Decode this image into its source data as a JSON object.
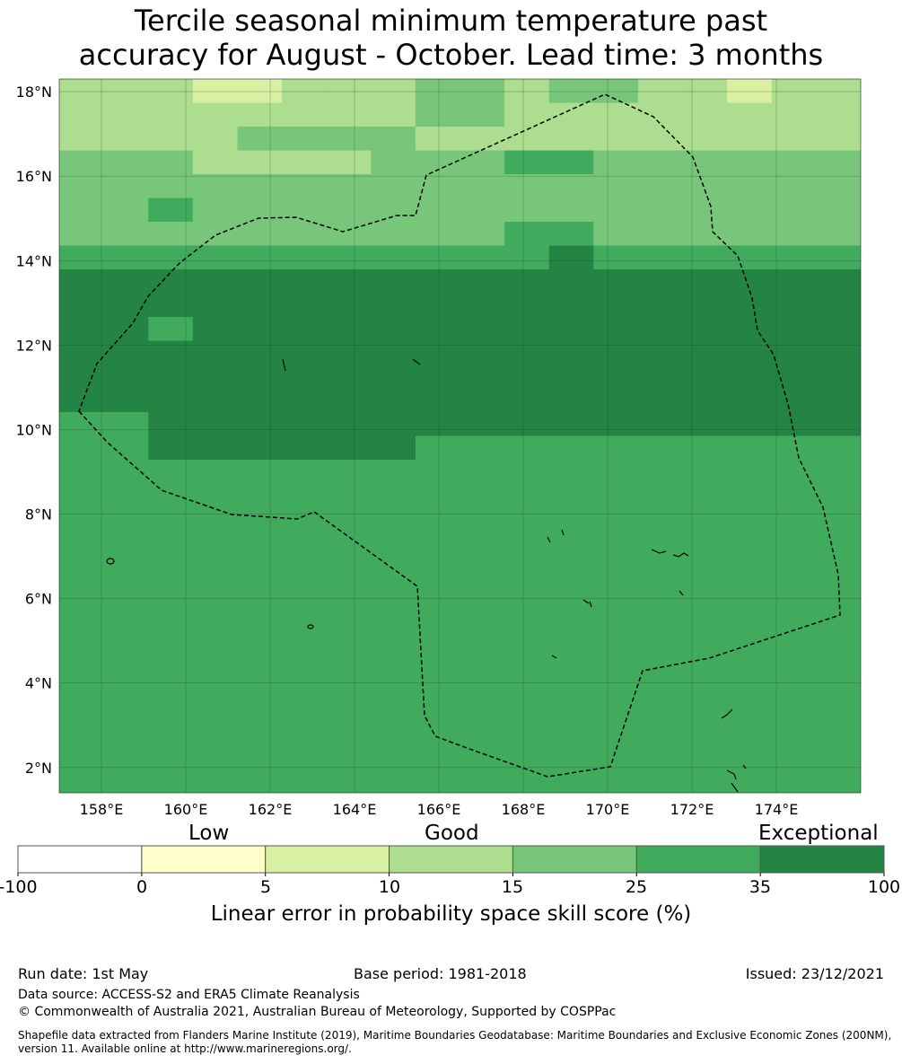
{
  "title": {
    "line1": "Tercile seasonal minimum temperature past",
    "line2": "accuracy for August - October. Lead time: 3 months"
  },
  "map": {
    "lon_range": [
      157,
      176
    ],
    "lat_range": [
      1.4,
      18.3
    ],
    "lat_ticks": [
      "18°N",
      "16°N",
      "14°N",
      "12°N",
      "10°N",
      "8°N",
      "6°N",
      "4°N",
      "2°N"
    ],
    "lon_ticks": [
      "158°E",
      "160°E",
      "162°E",
      "164°E",
      "166°E",
      "168°E",
      "170°E",
      "172°E",
      "174°E"
    ],
    "eez_boundary": "dashed black line",
    "skill_grid": [
      "333223334434433233",
      "333333334433333333",
      "333344443333333333",
      "444333344455444444",
      "444444444444444444",
      "445444444444444444",
      "444444444455444444",
      "555555555556555555",
      "666666666666666666",
      "666666666666666666",
      "665666666666666666",
      "666666666666666666",
      "666666666666666666",
      "666666666666666666",
      "556666666666666666",
      "556666665555555555",
      "555555555555555555",
      "555555555555555555",
      "555555555555555555",
      "555555555555555555",
      "555555555555555555",
      "555555555555555555",
      "555555555555555555",
      "555555555555555555",
      "555555555555555555",
      "555555555555555555",
      "555555555555555555",
      "555555555555555555",
      "555555555555555555",
      "555555555555555555"
    ]
  },
  "colorbar": {
    "category_labels": [
      "Low",
      "Good",
      "Exceptional"
    ],
    "tick_labels": [
      "-100",
      "0",
      "5",
      "10",
      "15",
      "25",
      "35",
      "100"
    ],
    "colors": [
      "#ffffff",
      "#ffffcc",
      "#d9f0a3",
      "#addd8e",
      "#78c679",
      "#41ab5d",
      "#238443"
    ],
    "title": "Linear error in probability space skill score (%)"
  },
  "footer": {
    "run_date": "Run date: 1st May",
    "base_period": "Base period: 1981-2018",
    "issued": "Issued: 23/12/2021",
    "data_source": "Data source: ACCESS-S2 and ERA5 Climate Reanalysis",
    "copyright": "© Commonwealth of Australia 2021, Australian Bureau of Meteorology, Supported by COSPPac",
    "shapefile_line1": "Shapefile data extracted from Flanders Marine Institute (2019), Maritime Boundaries Geodatabase: Maritime Boundaries and Exclusive Economic Zones (200NM),",
    "shapefile_line2": "version 11. Available online at http://www.marineregions.org/."
  }
}
